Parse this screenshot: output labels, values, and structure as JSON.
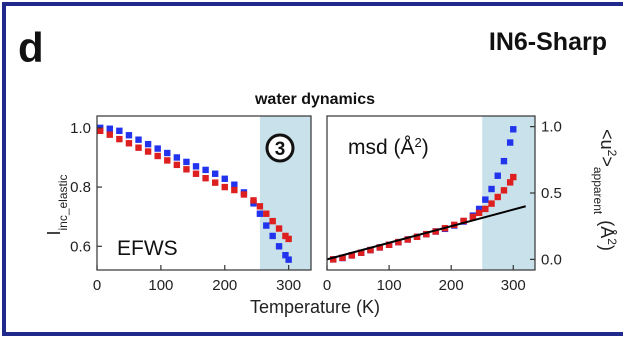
{
  "figure": {
    "panel_letter": "d",
    "instrument": "IN6-Sharp",
    "subtitle": "water dynamics",
    "xlabel": "Temperature (K)",
    "colors": {
      "frame": "#1f2a8c",
      "blue": "#2233ee",
      "red": "#dd1f1f",
      "shade": "#c9e1ea",
      "fit": "#000000"
    }
  },
  "chart_data": [
    {
      "type": "scatter",
      "label": "EFWS",
      "marker": "3",
      "ylabel": "I",
      "ylabel_sub": "inc_elastic",
      "xlim": [
        0,
        335
      ],
      "ylim": [
        0.52,
        1.04
      ],
      "x_ticks": [
        0,
        100,
        200,
        300
      ],
      "y_ticks": [
        0.6,
        0.8,
        1.0
      ],
      "y_tick_labels": [
        "0.6",
        "0.8",
        "1.0"
      ],
      "shaded_x_range": [
        255,
        335
      ],
      "series": [
        {
          "color": "blue",
          "x": [
            5,
            20,
            35,
            50,
            65,
            80,
            95,
            110,
            125,
            140,
            155,
            170,
            185,
            200,
            215,
            230,
            245,
            255,
            265,
            275,
            285,
            295,
            300
          ],
          "y": [
            1.0,
            0.997,
            0.99,
            0.975,
            0.96,
            0.945,
            0.93,
            0.915,
            0.9,
            0.885,
            0.87,
            0.858,
            0.845,
            0.828,
            0.808,
            0.782,
            0.745,
            0.71,
            0.67,
            0.635,
            0.6,
            0.57,
            0.555
          ]
        },
        {
          "color": "red",
          "x": [
            5,
            20,
            35,
            50,
            65,
            80,
            95,
            110,
            125,
            140,
            155,
            170,
            185,
            200,
            215,
            230,
            245,
            255,
            265,
            275,
            285,
            295,
            300
          ],
          "y": [
            0.99,
            0.977,
            0.962,
            0.948,
            0.933,
            0.92,
            0.905,
            0.89,
            0.875,
            0.86,
            0.845,
            0.83,
            0.815,
            0.8,
            0.79,
            0.775,
            0.755,
            0.735,
            0.71,
            0.685,
            0.66,
            0.635,
            0.625
          ]
        }
      ]
    },
    {
      "type": "scatter",
      "label": "msd (Å",
      "label_sup": "2",
      "label_end": ")",
      "ylabel": "<u",
      "ylabel_sup": "2",
      "ylabel_mid": ">",
      "ylabel_sub": "apparent",
      "ylabel_end": "(Å",
      "ylabel_end_sup": "2",
      "ylabel_close": ")",
      "xlim": [
        0,
        335
      ],
      "ylim": [
        -0.08,
        1.08
      ],
      "x_ticks": [
        0,
        100,
        200,
        300
      ],
      "y_ticks": [
        0.0,
        0.5,
        1.0
      ],
      "y_tick_labels": [
        "0.0",
        "0.5",
        "1.0"
      ],
      "shaded_x_range": [
        250,
        335
      ],
      "series": [
        {
          "color": "blue",
          "x": [
            10,
            25,
            40,
            55,
            70,
            85,
            100,
            115,
            130,
            145,
            160,
            175,
            190,
            205,
            220,
            235,
            245,
            255,
            265,
            275,
            285,
            295,
            300
          ],
          "y": [
            0.0,
            0.01,
            0.03,
            0.05,
            0.07,
            0.09,
            0.11,
            0.13,
            0.15,
            0.17,
            0.19,
            0.21,
            0.23,
            0.255,
            0.285,
            0.33,
            0.38,
            0.45,
            0.53,
            0.63,
            0.74,
            0.88,
            0.98
          ]
        },
        {
          "color": "red",
          "x": [
            10,
            25,
            40,
            55,
            70,
            85,
            100,
            115,
            130,
            145,
            160,
            175,
            190,
            205,
            220,
            235,
            245,
            255,
            265,
            275,
            285,
            295,
            300
          ],
          "y": [
            0.0,
            0.012,
            0.03,
            0.05,
            0.07,
            0.09,
            0.11,
            0.13,
            0.15,
            0.17,
            0.19,
            0.21,
            0.235,
            0.26,
            0.29,
            0.32,
            0.35,
            0.38,
            0.42,
            0.47,
            0.52,
            0.58,
            0.62
          ]
        }
      ],
      "fit_line": {
        "x": [
          0,
          320
        ],
        "y": [
          0.0,
          0.4
        ]
      }
    }
  ]
}
